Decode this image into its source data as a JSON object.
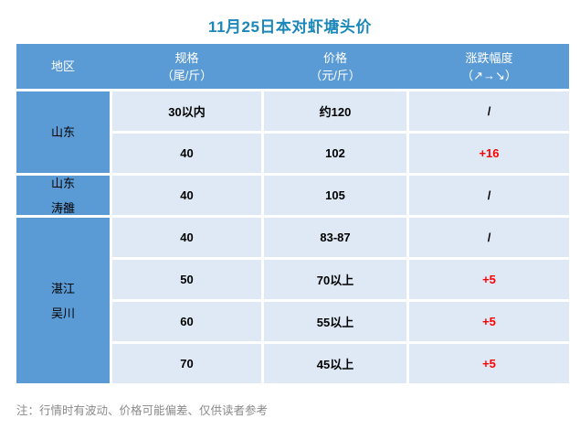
{
  "title": "11月25日本对虾塘头价",
  "colors": {
    "header_blue": "#5b9bd5",
    "cell_blue": "#dee9f5",
    "title_teal": "#1a87b8",
    "up_red": "#ff0000",
    "note_gray": "#8a8a8a"
  },
  "table": {
    "headers": [
      {
        "line1": "地区",
        "line2": ""
      },
      {
        "line1": "规格",
        "line2": "（尾/斤）"
      },
      {
        "line1": "价格",
        "line2": "（元/斤）"
      },
      {
        "line1": "涨跌幅度",
        "line2": "（↗→↘）"
      }
    ],
    "regions": [
      {
        "name_lines": [
          "山东"
        ],
        "rows": [
          {
            "spec": "30以内",
            "price": "约120",
            "change": "/",
            "change_color": "black"
          },
          {
            "spec": "40",
            "price": "102",
            "change": "+16",
            "change_color": "red"
          }
        ]
      },
      {
        "name_lines": [
          "山东",
          "涛雒"
        ],
        "rows": [
          {
            "spec": "40",
            "price": "105",
            "change": "/",
            "change_color": "black"
          }
        ]
      },
      {
        "name_lines": [
          "湛江",
          "吴川"
        ],
        "rows": [
          {
            "spec": "40",
            "price": "83-87",
            "change": "/",
            "change_color": "black"
          },
          {
            "spec": "50",
            "price": "70以上",
            "change": "+5",
            "change_color": "red"
          },
          {
            "spec": "60",
            "price": "55以上",
            "change": "+5",
            "change_color": "red"
          },
          {
            "spec": "70",
            "price": "45以上",
            "change": "+5",
            "change_color": "red"
          }
        ]
      }
    ]
  },
  "note": "注：行情时有波动、价格可能偏差、仅供读者参考"
}
